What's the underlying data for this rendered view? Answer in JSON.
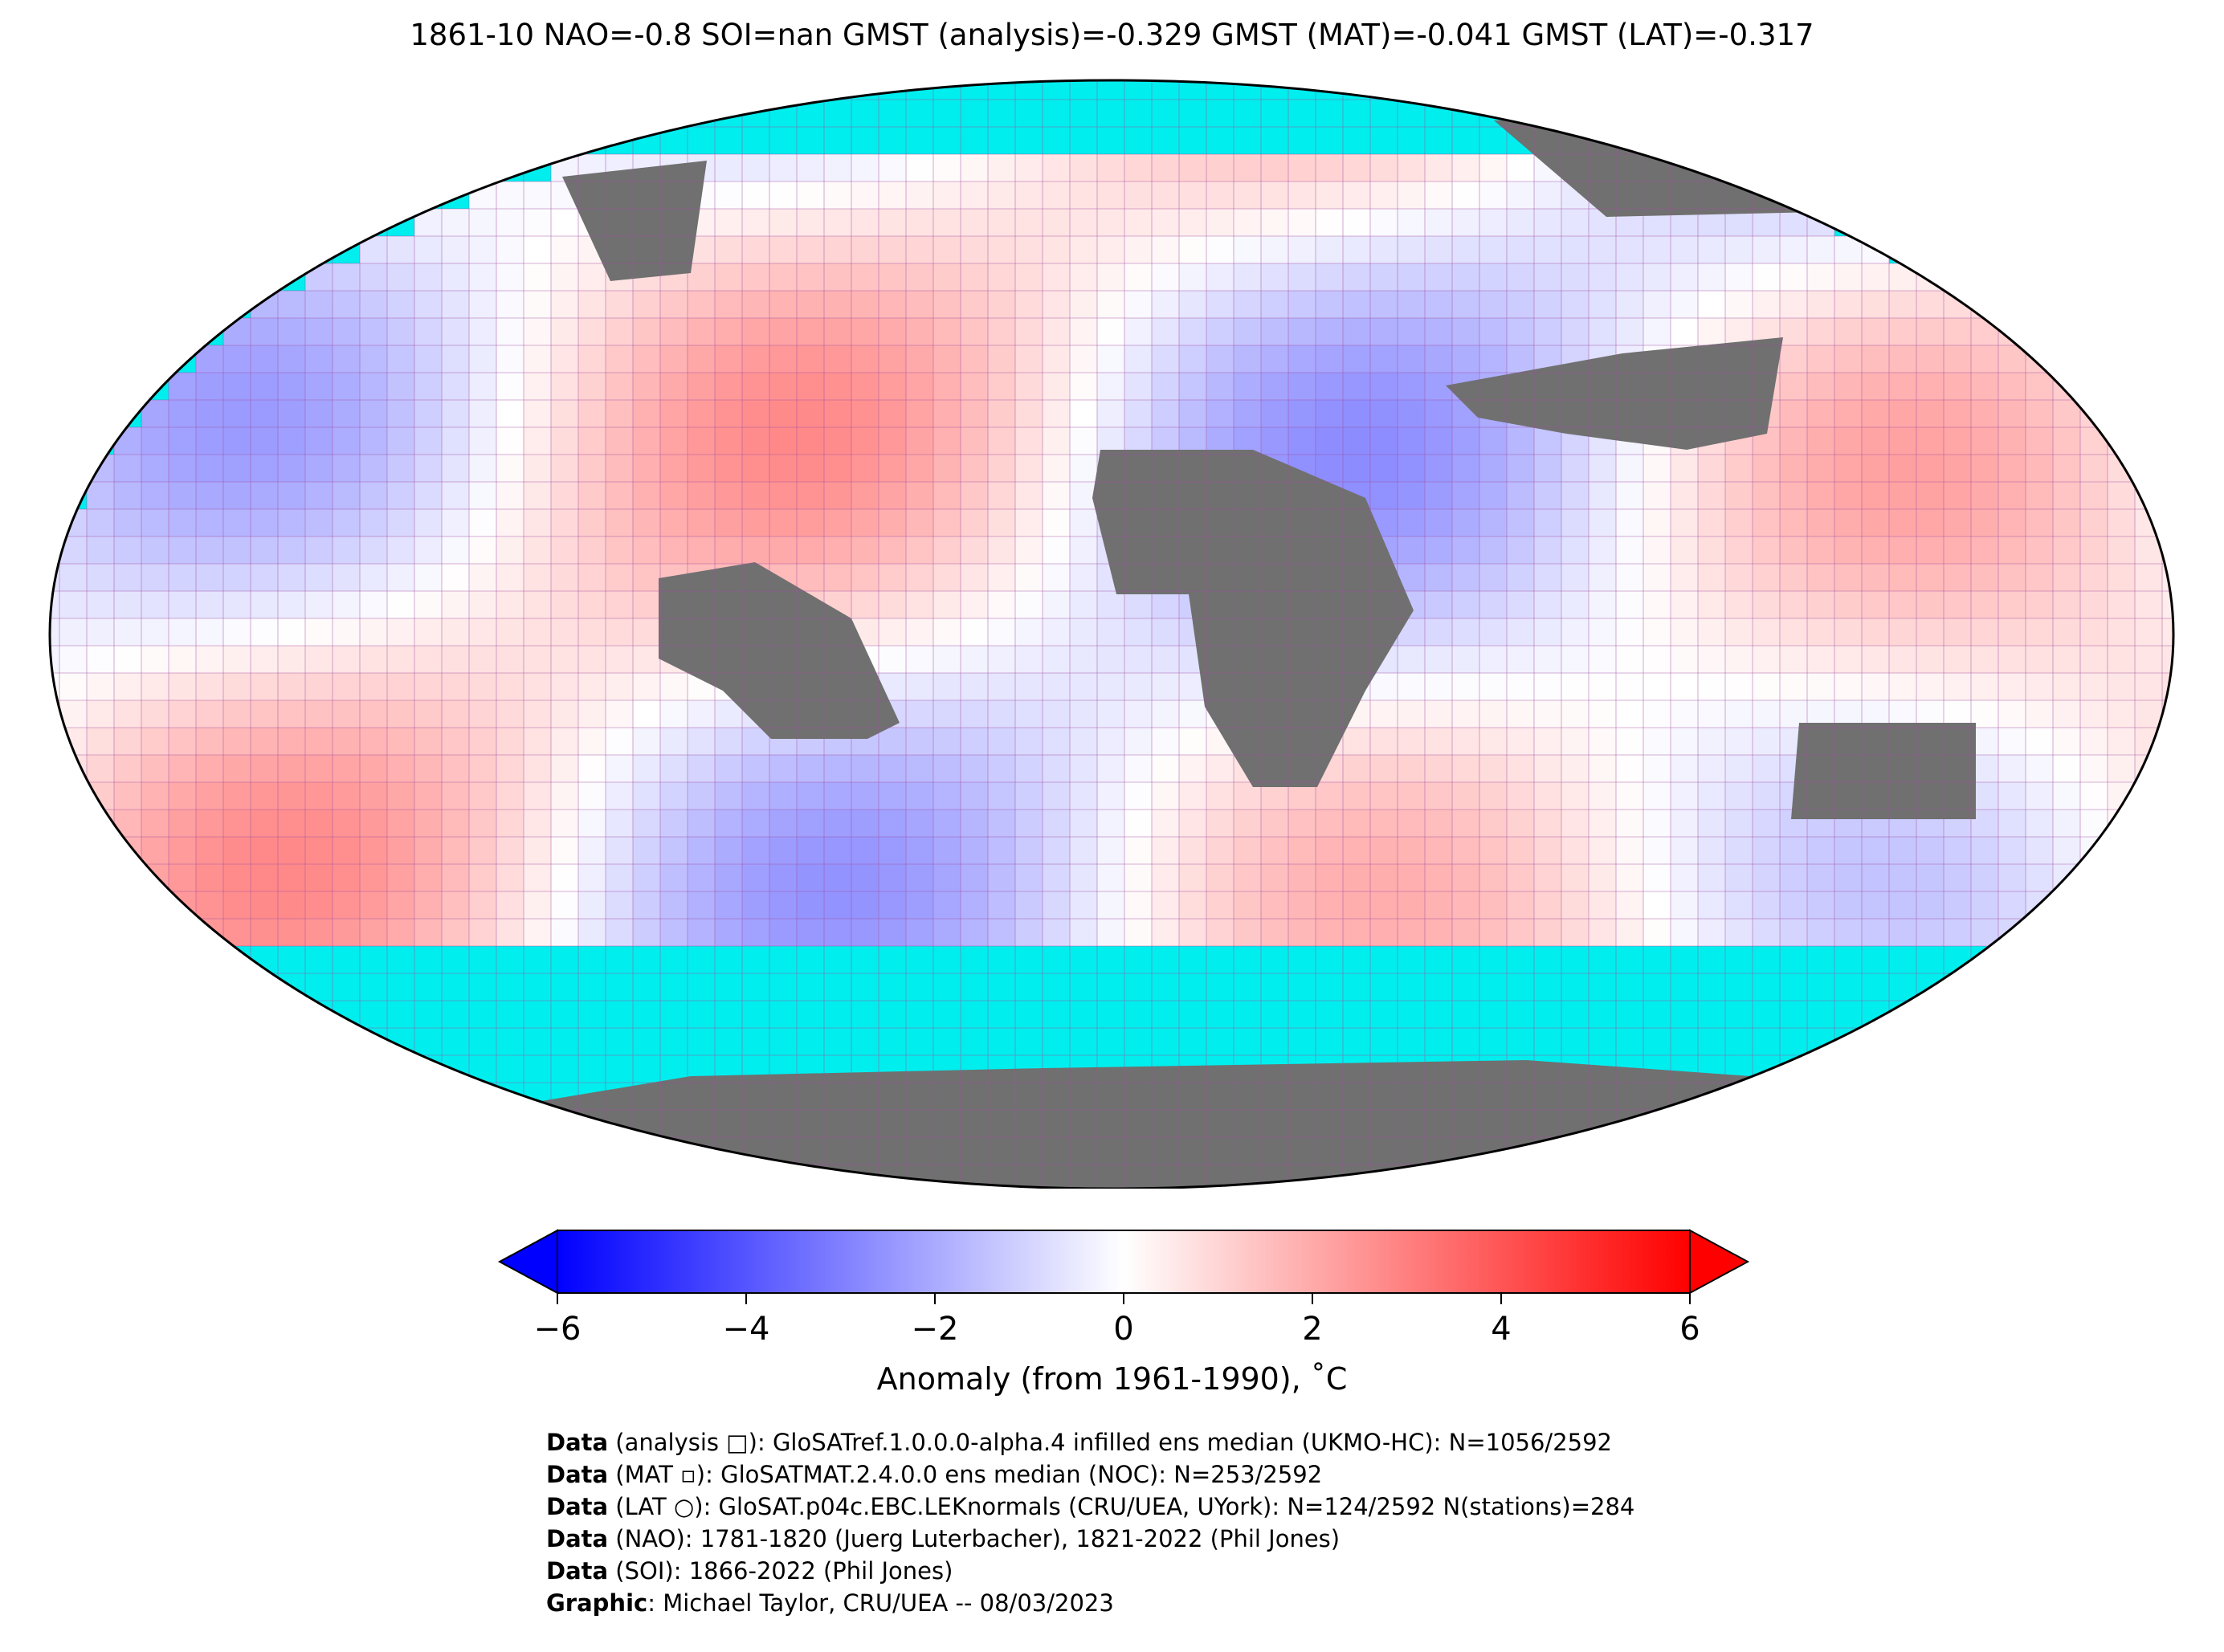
{
  "title": "1861-10 NAO=-0.8 SOI=nan GMST (analysis)=-0.329 GMST (MAT)=-0.041 GMST (LAT)=-0.317",
  "colors": {
    "ocean_nodata": "#00eeee",
    "land_nodata": "#707070",
    "gridline": "#a050a0",
    "cmap_min": "#0000ff",
    "cmap_mid": "#ffffff",
    "cmap_max": "#ff0000"
  },
  "colorbar": {
    "min": -6,
    "max": 6,
    "ticks": [
      "−6",
      "−4",
      "−2",
      "0",
      "2",
      "4",
      "6"
    ],
    "label": "Anomaly (from 1961-1990), ˚C",
    "extend": "both"
  },
  "credits": [
    {
      "key": "Data",
      "text": " (analysis □): GloSATref.1.0.0.0-alpha.4 infilled ens median (UKMO-HC): N=1056/2592"
    },
    {
      "key": "Data",
      "text": " (MAT ▫): GloSATMAT.2.4.0.0 ens median (NOC): N=253/2592"
    },
    {
      "key": "Data",
      "text": " (LAT ○): GloSAT.p04c.EBC.LEKnormals (CRU/UEA, UYork): N=124/2592 N(stations)=284"
    },
    {
      "key": "Data",
      "text": " (NAO): 1781-1820 (Juerg Luterbacher), 1821-2022 (Phil Jones)"
    },
    {
      "key": "Data",
      "text": " (SOI): 1866-2022 (Phil Jones)"
    },
    {
      "key": "Graphic",
      "text": ": Michael Taylor, CRU/UEA -- 08/03/2023"
    }
  ]
}
